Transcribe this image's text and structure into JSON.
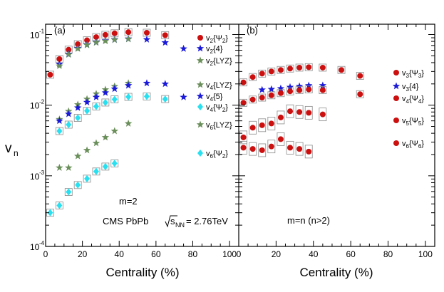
{
  "colors": {
    "red": "#cc1010",
    "blue": "#1a1ad8",
    "green": "#6a8f5a",
    "cyan": "#28e0f0",
    "grey_box": "#8c8c8c"
  },
  "chart_data": [
    {
      "type": "scatter",
      "panel_label": "(a)",
      "ylabel": "v",
      "ylabel_sub": "n",
      "xlabel": "Centrality (%)",
      "x_scale": "linear",
      "y_scale": "log",
      "xlim": [
        0,
        105
      ],
      "ylim": [
        0.0001,
        0.14
      ],
      "x_ticks": [
        "0",
        "20",
        "40",
        "60",
        "80",
        "100"
      ],
      "y_ticks": [
        "10",
        "10",
        "10",
        "10"
      ],
      "y_tick_exponents": [
        "-4",
        "-3",
        "-2",
        "-1"
      ],
      "annotation": "m=2",
      "experiment_label": "CMS PbPb",
      "sqrt_label": "s",
      "sqrt_sub": "NN",
      "energy_label": "= 2.76TeV",
      "series": [
        {
          "name": "v2{Ψ2}",
          "base": "v",
          "sub": "2",
          "brace": "{Ψ",
          "brace_sub": "2",
          "close": "}",
          "marker": "circle",
          "color": "red",
          "x": [
            2.5,
            7.5,
            12.5,
            17.5,
            22.5,
            27.5,
            32.5,
            37.5,
            45,
            55,
            65
          ],
          "y": [
            0.027,
            0.045,
            0.061,
            0.073,
            0.083,
            0.092,
            0.099,
            0.104,
            0.108,
            0.106,
            0.098
          ]
        },
        {
          "name": "v2{4}",
          "base": "v",
          "sub": "2",
          "brace": "{4}",
          "brace_sub": "",
          "close": "",
          "marker": "star",
          "color": "blue",
          "x": [
            7.5,
            12.5,
            17.5,
            22.5,
            27.5,
            32.5,
            37.5,
            45,
            55,
            65,
            75
          ],
          "y": [
            0.038,
            0.053,
            0.064,
            0.072,
            0.078,
            0.082,
            0.085,
            0.087,
            0.085,
            0.077,
            0.063
          ]
        },
        {
          "name": "v2{LYZ}",
          "base": "v",
          "sub": "2",
          "brace": "{LYZ}",
          "brace_sub": "",
          "close": "",
          "marker": "star",
          "color": "green",
          "x": [
            7.5,
            12.5,
            17.5,
            22.5,
            27.5,
            32.5,
            37.5,
            45
          ],
          "y": [
            0.036,
            0.052,
            0.063,
            0.071,
            0.077,
            0.081,
            0.084,
            0.086
          ]
        },
        {
          "name": "v4{LYZ}",
          "base": "v",
          "sub": "4",
          "brace": "{LYZ}",
          "brace_sub": "",
          "close": "",
          "marker": "star",
          "color": "green",
          "x": [
            7.5,
            12.5,
            17.5,
            22.5,
            27.5,
            32.5,
            37.5,
            45
          ],
          "y": [
            0.0063,
            0.0082,
            0.0102,
            0.0122,
            0.0145,
            0.0166,
            0.0185,
            0.0205
          ]
        },
        {
          "name": "v4{5}",
          "base": "v",
          "sub": "4",
          "brace": "{5}",
          "brace_sub": "",
          "close": "",
          "marker": "star",
          "color": "blue",
          "x": [
            7.5,
            12.5,
            17.5,
            22.5,
            27.5,
            32.5,
            37.5,
            45,
            55,
            65,
            75
          ],
          "y": [
            0.006,
            0.0075,
            0.0092,
            0.011,
            0.013,
            0.015,
            0.017,
            0.019,
            0.0205,
            0.02,
            0.013
          ]
        },
        {
          "name": "v4{Ψ2}",
          "base": "v",
          "sub": "4",
          "brace": "{Ψ",
          "brace_sub": "2",
          "close": "}",
          "marker": "diamond",
          "color": "cyan",
          "x": [
            7.5,
            12.5,
            17.5,
            22.5,
            27.5,
            32.5,
            37.5,
            45,
            55,
            65
          ],
          "y": [
            0.0043,
            0.0053,
            0.0066,
            0.0083,
            0.0096,
            0.0109,
            0.0121,
            0.0131,
            0.0133,
            0.0122
          ]
        },
        {
          "name": "v6{LYZ}",
          "base": "v",
          "sub": "6",
          "brace": "{LYZ}",
          "brace_sub": "",
          "close": "",
          "marker": "star",
          "color": "green",
          "x": [
            7.5,
            12.5,
            17.5,
            22.5,
            27.5,
            32.5,
            37.5,
            45
          ],
          "y": [
            0.0013,
            0.0013,
            0.0019,
            0.0023,
            0.0029,
            0.0035,
            0.0043,
            0.0055
          ]
        },
        {
          "name": "v6{Ψ2}",
          "base": "v",
          "sub": "6",
          "brace": "{Ψ",
          "brace_sub": "2",
          "close": "}",
          "marker": "diamond",
          "color": "cyan",
          "x": [
            2.5,
            7.5,
            12.5,
            17.5,
            22.5,
            27.5,
            32.5,
            37.5
          ],
          "y": [
            0.0003,
            0.00038,
            0.00059,
            0.00074,
            0.00091,
            0.00115,
            0.00135,
            0.0015
          ]
        }
      ]
    },
    {
      "type": "scatter",
      "panel_label": "(b)",
      "xlabel": "Centrality (%)",
      "x_scale": "linear",
      "y_scale": "log",
      "xlim": [
        0,
        105
      ],
      "ylim": [
        0.0001,
        0.14
      ],
      "x_ticks": [
        "0",
        "20",
        "40",
        "60",
        "80",
        "100"
      ],
      "annotation": "m=n (n>2)",
      "series": [
        {
          "name": "v3{Ψ3}",
          "base": "v",
          "sub": "3",
          "brace": "{Ψ",
          "brace_sub": "3",
          "close": "}",
          "marker": "circle",
          "color": "red",
          "x": [
            2.5,
            7.5,
            12.5,
            17.5,
            22.5,
            27.5,
            32.5,
            37.5,
            45,
            55,
            65
          ],
          "y": [
            0.021,
            0.025,
            0.028,
            0.03,
            0.0315,
            0.033,
            0.034,
            0.0345,
            0.034,
            0.0315,
            0.026
          ]
        },
        {
          "name": "v3{4}",
          "base": "v",
          "sub": "3",
          "brace": "{4}",
          "brace_sub": "",
          "close": "",
          "marker": "star",
          "color": "blue",
          "x": [
            12.5,
            17.5,
            22.5,
            27.5,
            32.5,
            37.5,
            45
          ],
          "y": [
            0.0165,
            0.0168,
            0.0172,
            0.018,
            0.0185,
            0.019,
            0.019
          ]
        },
        {
          "name": "v4{Ψ4}",
          "base": "v",
          "sub": "4",
          "brace": "{Ψ",
          "brace_sub": "4",
          "close": "}",
          "marker": "circle",
          "color": "red",
          "x": [
            2.5,
            7.5,
            12.5,
            17.5,
            22.5,
            27.5,
            32.5,
            37.5,
            45,
            65
          ],
          "y": [
            0.0108,
            0.012,
            0.0128,
            0.0138,
            0.0148,
            0.0157,
            0.0163,
            0.0167,
            0.0163,
            0.0143
          ]
        },
        {
          "name": "v5{Ψ5}",
          "base": "v",
          "sub": "5",
          "brace": "{Ψ",
          "brace_sub": "5",
          "close": "}",
          "marker": "circle",
          "color": "red",
          "x": [
            2.5,
            7.5,
            12.5,
            17.5,
            22.5,
            27.5,
            32.5,
            37.5,
            45
          ],
          "y": [
            0.0035,
            0.0048,
            0.0052,
            0.0055,
            0.0067,
            0.0082,
            0.008,
            0.0078,
            0.0074
          ]
        },
        {
          "name": "v6{Ψ6}",
          "base": "v",
          "sub": "6",
          "brace": "{Ψ",
          "brace_sub": "6",
          "close": "}",
          "marker": "circle",
          "color": "red",
          "x": [
            2.5,
            7.5,
            12.5,
            17.5,
            22.5,
            27.5,
            32.5,
            37.5
          ],
          "y": [
            0.0025,
            0.0024,
            0.0023,
            0.0026,
            0.0033,
            0.0025,
            0.0024,
            0.0022
          ]
        }
      ]
    }
  ]
}
